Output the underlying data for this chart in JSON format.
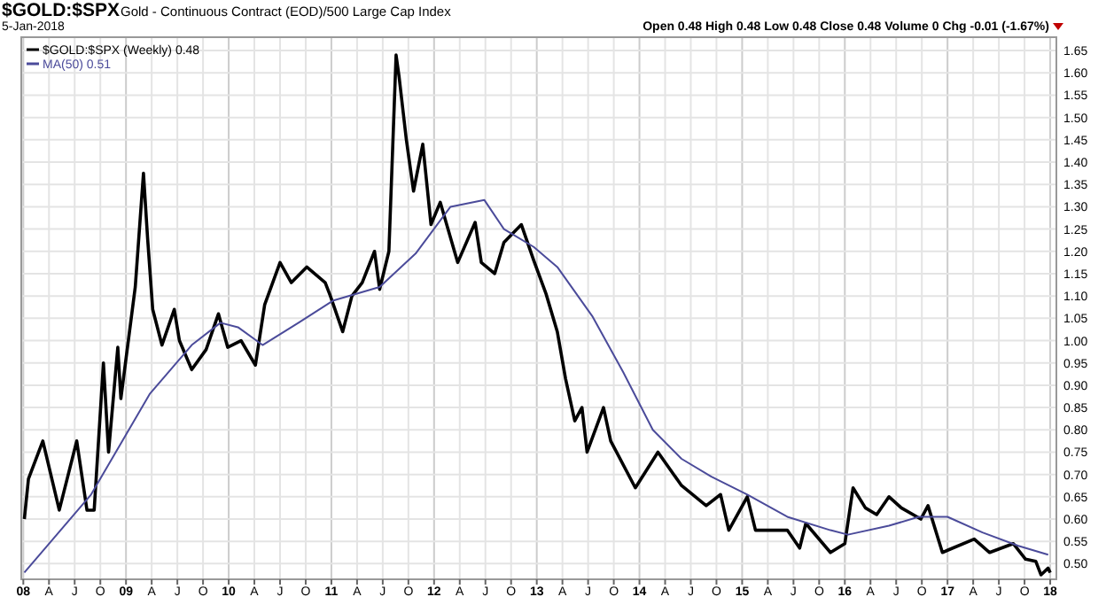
{
  "chart_data": {
    "type": "line",
    "title": "$GOLD:$SPX",
    "subtitle": "Gold - Continuous Contract (EOD)/500 Large Cap Index",
    "annotations": [
      "5-Jan-2018",
      "Open 0.48  High 0.48  Low 0.48  Close 0.48  Volume 0  Chg -0.01 (-1.67%)"
    ],
    "xlim": [
      2007.98,
      2018.06
    ],
    "xticks": [
      {
        "value": 2008,
        "label": "08"
      },
      {
        "value": 2008.25,
        "label": "A"
      },
      {
        "value": 2008.5,
        "label": "J"
      },
      {
        "value": 2008.75,
        "label": "O"
      },
      {
        "value": 2009,
        "label": "09"
      },
      {
        "value": 2009.25,
        "label": "A"
      },
      {
        "value": 2009.5,
        "label": "J"
      },
      {
        "value": 2009.75,
        "label": "O"
      },
      {
        "value": 2010,
        "label": "10"
      },
      {
        "value": 2010.25,
        "label": "A"
      },
      {
        "value": 2010.5,
        "label": "J"
      },
      {
        "value": 2010.75,
        "label": "O"
      },
      {
        "value": 2011,
        "label": "11"
      },
      {
        "value": 2011.25,
        "label": "A"
      },
      {
        "value": 2011.5,
        "label": "J"
      },
      {
        "value": 2011.75,
        "label": "O"
      },
      {
        "value": 2012,
        "label": "12"
      },
      {
        "value": 2012.25,
        "label": "A"
      },
      {
        "value": 2012.5,
        "label": "J"
      },
      {
        "value": 2012.75,
        "label": "O"
      },
      {
        "value": 2013,
        "label": "13"
      },
      {
        "value": 2013.25,
        "label": "A"
      },
      {
        "value": 2013.5,
        "label": "J"
      },
      {
        "value": 2013.75,
        "label": "O"
      },
      {
        "value": 2014,
        "label": "14"
      },
      {
        "value": 2014.25,
        "label": "A"
      },
      {
        "value": 2014.5,
        "label": "J"
      },
      {
        "value": 2014.75,
        "label": "O"
      },
      {
        "value": 2015,
        "label": "15"
      },
      {
        "value": 2015.25,
        "label": "A"
      },
      {
        "value": 2015.5,
        "label": "J"
      },
      {
        "value": 2015.75,
        "label": "O"
      },
      {
        "value": 2016,
        "label": "16"
      },
      {
        "value": 2016.25,
        "label": "A"
      },
      {
        "value": 2016.5,
        "label": "J"
      },
      {
        "value": 2016.75,
        "label": "O"
      },
      {
        "value": 2017,
        "label": "17"
      },
      {
        "value": 2017.25,
        "label": "A"
      },
      {
        "value": 2017.5,
        "label": "J"
      },
      {
        "value": 2017.75,
        "label": "O"
      },
      {
        "value": 2018,
        "label": "18"
      }
    ],
    "ylim": [
      0.465,
      1.68
    ],
    "yticks": [
      {
        "value": 0.5,
        "label": "0.50"
      },
      0.55,
      {
        "value": 0.6,
        "label": "0.60"
      },
      0.65,
      {
        "value": 0.7,
        "label": "0.70"
      },
      0.75,
      {
        "value": 0.8,
        "label": "0.80"
      },
      0.85,
      {
        "value": 0.9,
        "label": "0.90"
      },
      0.95,
      {
        "value": 1.0,
        "label": "1.00"
      },
      1.05,
      {
        "value": 1.1,
        "label": "1.10"
      },
      1.15,
      {
        "value": 1.2,
        "label": "1.20"
      },
      1.25,
      {
        "value": 1.3,
        "label": "1.30"
      },
      1.35,
      {
        "value": 1.4,
        "label": "1.40"
      },
      1.45,
      {
        "value": 1.5,
        "label": "1.50"
      },
      1.55,
      {
        "value": 1.6,
        "label": "1.60"
      },
      1.65
    ],
    "grid": true,
    "legend": "top left",
    "marker": "none",
    "line_style": "solid",
    "series": [
      {
        "name": "$GOLD:$SPX (Weekly) 0.48",
        "color": "#000000",
        "x": [
          2008.01,
          2008.05,
          2008.19,
          2008.35,
          2008.52,
          2008.62,
          2008.69,
          2008.78,
          2008.83,
          2008.92,
          2008.95,
          2009.09,
          2009.17,
          2009.21,
          2009.26,
          2009.35,
          2009.47,
          2009.52,
          2009.64,
          2009.78,
          2009.9,
          2009.99,
          2010.12,
          2010.26,
          2010.35,
          2010.5,
          2010.61,
          2010.76,
          2010.94,
          2010.99,
          2011.11,
          2011.2,
          2011.3,
          2011.42,
          2011.47,
          2011.56,
          2011.63,
          2011.66,
          2011.73,
          2011.8,
          2011.89,
          2011.97,
          2012.06,
          2012.23,
          2012.4,
          2012.46,
          2012.59,
          2012.68,
          2012.85,
          2012.97,
          2013.09,
          2013.2,
          2013.28,
          2013.37,
          2013.44,
          2013.49,
          2013.65,
          2013.72,
          2013.96,
          2014.18,
          2014.41,
          2014.65,
          2014.79,
          2014.87,
          2015.05,
          2015.13,
          2015.44,
          2015.56,
          2015.62,
          2015.86,
          2016.0,
          2016.08,
          2016.2,
          2016.31,
          2016.43,
          2016.55,
          2016.74,
          2016.81,
          2016.95,
          2017.0,
          2017.26,
          2017.41,
          2017.64,
          2017.76,
          2017.86,
          2017.91,
          2017.98,
          2018.0
        ],
        "values": [
          0.6,
          0.69,
          0.775,
          0.62,
          0.775,
          0.62,
          0.62,
          0.95,
          0.75,
          0.985,
          0.87,
          1.12,
          1.375,
          1.23,
          1.07,
          0.99,
          1.07,
          1.0,
          0.935,
          0.98,
          1.06,
          0.985,
          1.0,
          0.945,
          1.08,
          1.175,
          1.13,
          1.165,
          1.13,
          1.1,
          1.02,
          1.1,
          1.13,
          1.2,
          1.115,
          1.2,
          1.64,
          1.59,
          1.45,
          1.335,
          1.44,
          1.26,
          1.31,
          1.175,
          1.265,
          1.175,
          1.15,
          1.22,
          1.26,
          1.18,
          1.105,
          1.02,
          0.915,
          0.82,
          0.85,
          0.75,
          0.85,
          0.775,
          0.67,
          0.75,
          0.675,
          0.63,
          0.655,
          0.575,
          0.65,
          0.575,
          0.575,
          0.535,
          0.59,
          0.525,
          0.545,
          0.67,
          0.625,
          0.61,
          0.65,
          0.625,
          0.6,
          0.63,
          0.525,
          0.53,
          0.555,
          0.525,
          0.545,
          0.51,
          0.505,
          0.475,
          0.49,
          0.48
        ]
      },
      {
        "name": "MA(50) 0.51",
        "color": "#4b4b9a",
        "x": [
          2008.01,
          2008.66,
          2009.23,
          2009.64,
          2009.92,
          2010.09,
          2010.33,
          2010.68,
          2011.02,
          2011.47,
          2011.82,
          2012.16,
          2012.49,
          2012.68,
          2012.97,
          2013.2,
          2013.54,
          2013.84,
          2014.13,
          2014.41,
          2014.7,
          2015.05,
          2015.44,
          2015.86,
          2016.03,
          2016.43,
          2016.72,
          2017.0,
          2017.34,
          2017.69,
          2017.98
        ],
        "values": [
          0.48,
          0.655,
          0.88,
          0.99,
          1.04,
          1.03,
          0.99,
          1.04,
          1.09,
          1.12,
          1.195,
          1.3,
          1.315,
          1.25,
          1.21,
          1.165,
          1.055,
          0.93,
          0.8,
          0.735,
          0.695,
          0.655,
          0.605,
          0.575,
          0.565,
          0.585,
          0.605,
          0.605,
          0.57,
          0.54,
          0.52
        ]
      }
    ]
  }
}
